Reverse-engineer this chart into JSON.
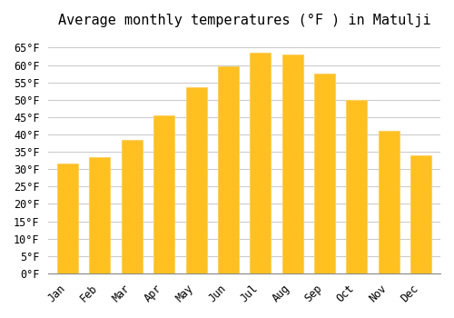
{
  "title": "Average monthly temperatures (°F ) in Matulji",
  "months": [
    "Jan",
    "Feb",
    "Mar",
    "Apr",
    "May",
    "Jun",
    "Jul",
    "Aug",
    "Sep",
    "Oct",
    "Nov",
    "Dec"
  ],
  "values": [
    31.5,
    33.5,
    38.5,
    45.5,
    53.5,
    59.5,
    63.5,
    63.0,
    57.5,
    50.0,
    41.0,
    34.0
  ],
  "bar_color_face": "#FFC020",
  "bar_color_edge": "#FFD060",
  "background_color": "#FFFFFF",
  "grid_color": "#CCCCCC",
  "ylim": [
    0,
    68
  ],
  "ytick_step": 5,
  "title_fontsize": 11,
  "tick_fontsize": 8.5,
  "font_family": "monospace"
}
